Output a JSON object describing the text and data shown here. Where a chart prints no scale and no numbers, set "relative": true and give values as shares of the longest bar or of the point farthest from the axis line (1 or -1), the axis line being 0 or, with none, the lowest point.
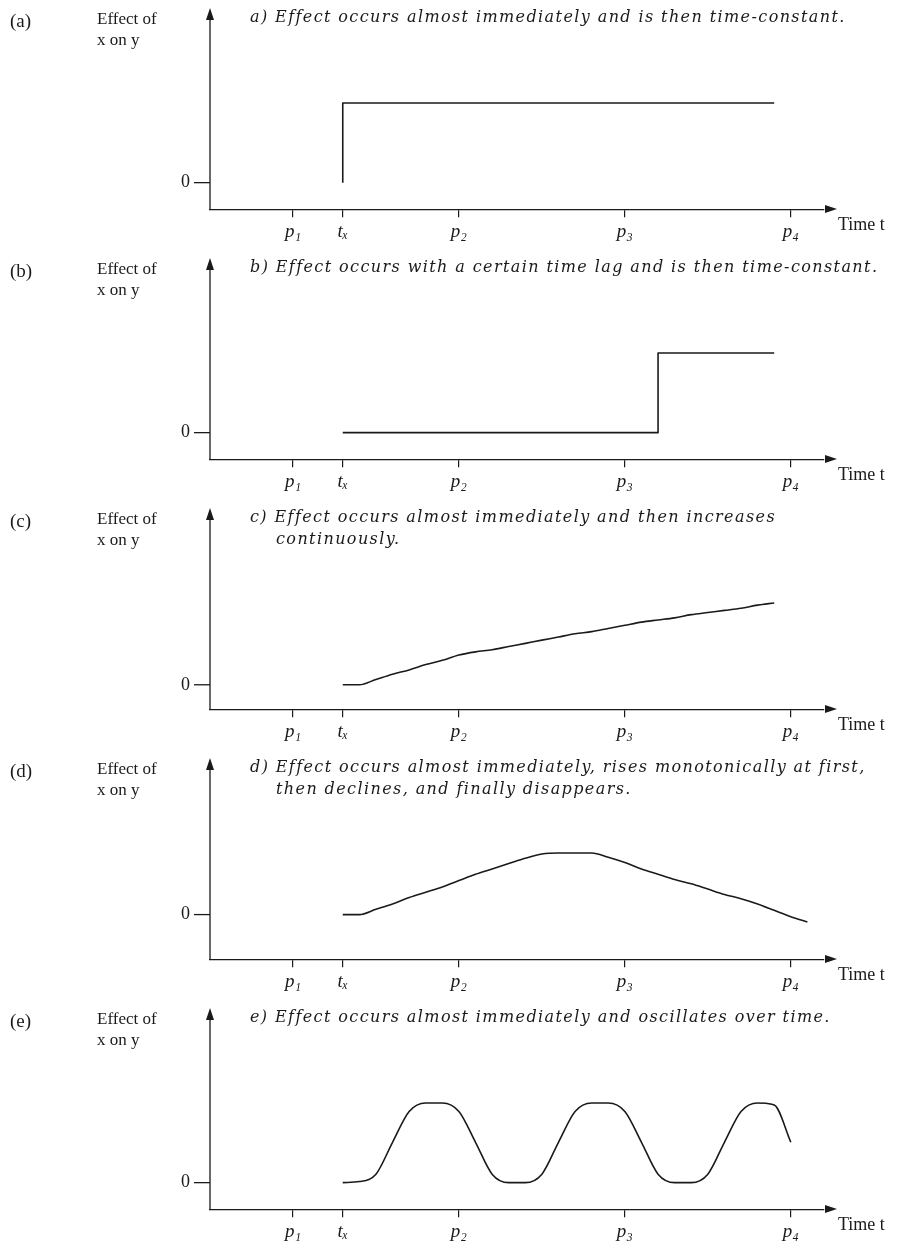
{
  "chart_data": [
    {
      "type": "step",
      "title": "a) Effect occurs almost immediately and is then time-constant.",
      "ylabel": "Effect of x on y",
      "xlabel": "Time t",
      "annotations": [
        "(a)",
        "0"
      ],
      "relative": true,
      "color": "#1a1a1a",
      "categories": [
        null,
        null,
        null,
        null,
        null,
        "p₁",
        null,
        null,
        "tₓ",
        null,
        null,
        null,
        null,
        null,
        null,
        "p₂",
        null,
        null,
        null,
        null,
        null,
        null,
        null,
        null,
        null,
        "p₃",
        null,
        null,
        null,
        null,
        null,
        null,
        null,
        null,
        null,
        "p₄",
        null,
        null
      ],
      "values": [
        null,
        null,
        null,
        null,
        null,
        null,
        null,
        null,
        0.25,
        1,
        1,
        1,
        1,
        1,
        1,
        1,
        1,
        1,
        1,
        1,
        1,
        1,
        1,
        1,
        1,
        1,
        1,
        1,
        1,
        1,
        1,
        1,
        1,
        1,
        1,
        null,
        null,
        null
      ]
    },
    {
      "type": "step",
      "title": "b) Effect occurs with a certain time lag and is then time-constant.",
      "ylabel": "Effect of x on y",
      "xlabel": "Time t",
      "annotations": [
        "(b)",
        "0"
      ],
      "relative": true,
      "color": "#1a1a1a",
      "categories": [
        null,
        null,
        null,
        null,
        null,
        "p₁",
        null,
        null,
        "tₓ",
        null,
        null,
        null,
        null,
        null,
        null,
        "p₂",
        null,
        null,
        null,
        null,
        null,
        null,
        null,
        null,
        null,
        "p₃",
        null,
        null,
        null,
        null,
        null,
        null,
        null,
        null,
        null,
        "p₄",
        null,
        null
      ],
      "values": [
        null,
        null,
        null,
        null,
        null,
        null,
        null,
        null,
        0.25,
        0.25,
        0.25,
        0.25,
        0.25,
        0.25,
        0.25,
        0.25,
        0.25,
        0.25,
        0.25,
        0.25,
        0.25,
        0.25,
        0.25,
        0.25,
        0.25,
        0.25,
        0.25,
        0.25,
        1,
        1,
        1,
        1,
        1,
        1,
        1,
        null,
        null,
        null
      ]
    },
    {
      "type": "line",
      "title": "c) Effect occurs almost immediately and then increases continuously.",
      "ylabel": "Effect of x on y",
      "xlabel": "Time t",
      "annotations": [
        "(c)",
        "0"
      ],
      "relative": true,
      "color": "#1a1a1a",
      "categories": [
        null,
        null,
        null,
        null,
        null,
        "p₁",
        null,
        null,
        "tₓ",
        null,
        null,
        null,
        null,
        null,
        null,
        "p₂",
        null,
        null,
        null,
        null,
        null,
        null,
        null,
        null,
        null,
        "p₃",
        null,
        null,
        null,
        null,
        null,
        null,
        null,
        null,
        null,
        "p₄",
        null,
        null
      ],
      "values": [
        null,
        null,
        null,
        null,
        null,
        null,
        null,
        null,
        0.23,
        0.23,
        0.28,
        0.33,
        0.37,
        0.42,
        0.46,
        0.51,
        0.54,
        0.56,
        0.59,
        0.62,
        0.65,
        0.68,
        0.71,
        0.73,
        0.76,
        0.79,
        0.82,
        0.84,
        0.86,
        0.89,
        0.91,
        0.93,
        0.95,
        0.98,
        1,
        null,
        null,
        null
      ]
    },
    {
      "type": "line",
      "title": "d) Effect occurs almost immediately, rises monotonically at first, then declines, and finally disappears.",
      "ylabel": "Effect of x on y",
      "xlabel": "Time t",
      "annotations": [
        "(d)",
        "0"
      ],
      "relative": true,
      "color": "#1a1a1a",
      "categories": [
        null,
        null,
        null,
        null,
        null,
        "p₁",
        null,
        null,
        "tₓ",
        null,
        null,
        null,
        null,
        null,
        null,
        "p₂",
        null,
        null,
        null,
        null,
        null,
        null,
        null,
        null,
        null,
        "p₃",
        null,
        null,
        null,
        null,
        null,
        null,
        null,
        null,
        null,
        "p₄",
        null,
        null
      ],
      "values": [
        null,
        null,
        null,
        null,
        null,
        null,
        null,
        null,
        0.42,
        0.42,
        0.47,
        0.52,
        0.58,
        0.63,
        0.68,
        0.74,
        0.8,
        0.85,
        0.9,
        0.95,
        0.99,
        1,
        1,
        1,
        0.96,
        0.91,
        0.85,
        0.8,
        0.75,
        0.71,
        0.66,
        0.61,
        0.57,
        0.52,
        0.46,
        0.4,
        0.35,
        null
      ]
    },
    {
      "type": "line",
      "title": "e) Effect occurs almost immediately and oscillates over time.",
      "ylabel": "Effect of x on y",
      "xlabel": "Time t",
      "annotations": [
        "(e)",
        "0"
      ],
      "relative": true,
      "color": "#1a1a1a",
      "categories": [
        null,
        null,
        null,
        null,
        null,
        "p₁",
        null,
        null,
        "tₓ",
        null,
        null,
        null,
        null,
        null,
        null,
        "p₂",
        null,
        null,
        null,
        null,
        null,
        null,
        null,
        null,
        null,
        "p₃",
        null,
        null,
        null,
        null,
        null,
        null,
        null,
        null,
        null,
        "p₄",
        null,
        null
      ],
      "values": [
        null,
        null,
        null,
        null,
        null,
        null,
        null,
        null,
        0.25,
        0.26,
        0.33,
        0.63,
        0.92,
        1,
        1,
        0.92,
        0.63,
        0.33,
        0.25,
        0.25,
        0.33,
        0.63,
        0.92,
        1,
        1,
        0.92,
        0.63,
        0.33,
        0.25,
        0.25,
        0.33,
        0.63,
        0.92,
        1,
        0.98,
        0.63,
        null,
        null
      ]
    }
  ]
}
